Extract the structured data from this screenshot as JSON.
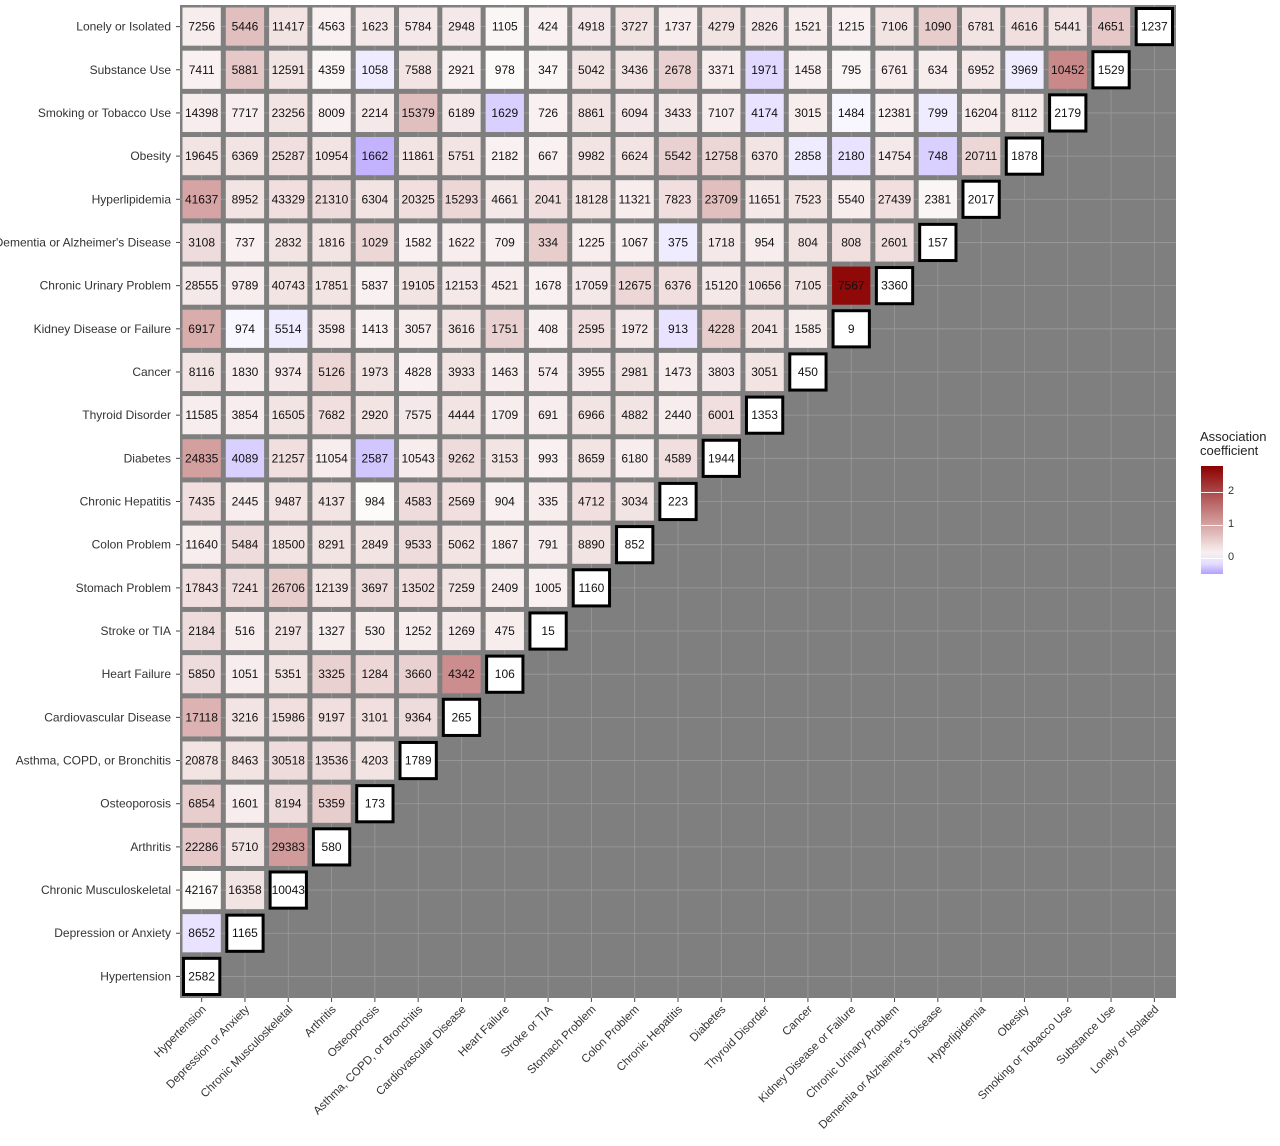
{
  "chart_data": {
    "type": "heatmap",
    "title": "",
    "xlabel": "",
    "ylabel": "",
    "conditions": [
      "Hypertension",
      "Depression or Anxiety",
      "Chronic Musculoskeletal",
      "Arthritis",
      "Osteoporosis",
      "Asthma, COPD, or Bronchitis",
      "Cardiovascular Disease",
      "Heart Failure",
      "Stroke or TIA",
      "Stomach Problem",
      "Colon Problem",
      "Chronic Hepatitis",
      "Diabetes",
      "Thyroid Disorder",
      "Cancer",
      "Kidney Disease or Failure",
      "Chronic Urinary Problem",
      "Dementia or Alzheimer's Disease",
      "Hyperlipidemia",
      "Obesity",
      "Smoking or Tobacco Use",
      "Substance Use",
      "Lonely or Isolated"
    ],
    "counts": [
      [
        2582,
        8652,
        42167,
        22286,
        6854,
        20878,
        17118,
        5850,
        2184,
        17843,
        11640,
        7435,
        24835,
        11585,
        8116,
        6917,
        28555,
        3108,
        41637,
        19645,
        14398,
        7411,
        7256
      ],
      [
        1165,
        16358,
        5710,
        1601,
        8463,
        3216,
        1051,
        516,
        7241,
        5484,
        2445,
        4089,
        3854,
        1830,
        974,
        9789,
        737,
        8952,
        6369,
        7717,
        5881,
        5446
      ],
      [
        10043,
        29383,
        8194,
        30518,
        15986,
        5351,
        2197,
        26706,
        18500,
        9487,
        21257,
        16505,
        9374,
        5514,
        40743,
        2832,
        43329,
        25287,
        23256,
        12591,
        11417
      ],
      [
        580,
        5359,
        13536,
        9197,
        3325,
        1327,
        12139,
        8291,
        4137,
        11054,
        7682,
        5126,
        3598,
        17851,
        1816,
        21310,
        10954,
        8009,
        4359,
        4563
      ],
      [
        173,
        4203,
        3101,
        1284,
        530,
        3697,
        2849,
        984,
        2587,
        2920,
        1973,
        1413,
        5837,
        1029,
        6304,
        1662,
        2214,
        1058,
        1623
      ],
      [
        1789,
        9364,
        3660,
        1252,
        13502,
        9533,
        4583,
        10543,
        7575,
        4828,
        3057,
        19105,
        1582,
        20325,
        11861,
        15379,
        7588,
        5784
      ],
      [
        265,
        4342,
        1269,
        7259,
        5062,
        2569,
        9262,
        4444,
        3933,
        3616,
        12153,
        1622,
        15293,
        5751,
        6189,
        2921,
        2948
      ],
      [
        106,
        475,
        2409,
        1867,
        904,
        3153,
        1709,
        1463,
        1751,
        4521,
        709,
        4661,
        2182,
        1629,
        978,
        1105
      ],
      [
        15,
        1005,
        791,
        335,
        993,
        691,
        574,
        408,
        1678,
        334,
        2041,
        667,
        726,
        347,
        424
      ],
      [
        1160,
        8890,
        4712,
        8659,
        6966,
        3955,
        2595,
        17059,
        1225,
        18128,
        9982,
        8861,
        5042,
        4918
      ],
      [
        852,
        3034,
        6180,
        4882,
        2981,
        1972,
        12675,
        1067,
        11321,
        6624,
        6094,
        3436,
        3727
      ],
      [
        223,
        4589,
        2440,
        1473,
        913,
        6376,
        375,
        7823,
        5542,
        3433,
        2678,
        1737
      ],
      [
        1944,
        6001,
        3803,
        4228,
        15120,
        1718,
        23709,
        12758,
        7107,
        3371,
        4279
      ],
      [
        1353,
        3051,
        2041,
        10656,
        954,
        11651,
        6370,
        4174,
        1971,
        2826
      ],
      [
        450,
        1585,
        7105,
        804,
        7523,
        2858,
        3015,
        1458,
        1521
      ],
      [
        9,
        7567,
        808,
        5540,
        2180,
        1484,
        795,
        1215
      ],
      [
        3360,
        2601,
        27439,
        14754,
        12381,
        6761,
        7106
      ],
      [
        157,
        2381,
        748,
        799,
        634,
        1090
      ],
      [
        2017,
        20711,
        16204,
        6952,
        6781
      ],
      [
        1878,
        8112,
        3969,
        4616
      ],
      [
        2179,
        10452,
        5441
      ],
      [
        1529,
        4651
      ],
      [
        1237
      ]
    ],
    "coefficients": [
      [
        null,
        -0.15,
        0.05,
        0.6,
        0.55,
        0.3,
        0.85,
        0.4,
        0.4,
        0.35,
        0.2,
        0.35,
        1.05,
        0.2,
        0.3,
        0.9,
        0.25,
        0.4,
        1.0,
        0.3,
        0.2,
        0.15,
        0.2
      ],
      [
        null,
        0.3,
        0.3,
        0.2,
        0.3,
        0.3,
        0.2,
        0.2,
        0.4,
        0.4,
        0.2,
        -0.25,
        0.2,
        0.2,
        -0.05,
        0.2,
        0.15,
        0.3,
        0.3,
        0.2,
        0.6,
        0.7
      ],
      [
        null,
        1.1,
        0.4,
        0.4,
        0.35,
        0.3,
        0.3,
        0.55,
        0.3,
        0.3,
        0.35,
        0.3,
        0.25,
        -0.1,
        0.3,
        0.3,
        0.35,
        0.35,
        0.3,
        0.3,
        0.3
      ],
      [
        null,
        0.55,
        0.4,
        0.35,
        0.5,
        0.2,
        0.3,
        0.3,
        0.3,
        0.2,
        0.35,
        0.45,
        0.25,
        0.3,
        0.3,
        0.4,
        0.3,
        0.15,
        0.1,
        0.15
      ],
      [
        null,
        0.3,
        0.35,
        0.45,
        0.2,
        0.4,
        0.3,
        0.05,
        -0.3,
        0.3,
        0.3,
        0.15,
        0.15,
        0.45,
        0.3,
        -0.4,
        0.25,
        -0.1,
        0.25
      ],
      [
        null,
        0.4,
        0.5,
        0.2,
        0.35,
        0.4,
        0.4,
        0.2,
        0.25,
        0.15,
        0.2,
        0.3,
        0.15,
        0.35,
        0.3,
        0.7,
        0.3,
        0.25
      ],
      [
        null,
        1.25,
        0.25,
        0.3,
        0.3,
        0.35,
        0.4,
        0.3,
        0.3,
        0.3,
        0.25,
        0.2,
        0.45,
        0.3,
        0.25,
        0.15,
        0.25
      ],
      [
        null,
        0.2,
        0.2,
        0.2,
        0.15,
        0.3,
        0.2,
        0.2,
        0.5,
        0.2,
        0.15,
        0.25,
        0.15,
        -0.25,
        0.05,
        0.1
      ],
      [
        null,
        0.15,
        0.2,
        0.2,
        0.15,
        0.2,
        0.2,
        0.15,
        0.15,
        0.55,
        0.35,
        0.15,
        0.15,
        0.1,
        0.15
      ],
      [
        null,
        0.3,
        0.35,
        0.3,
        0.3,
        0.25,
        0.35,
        0.25,
        0.2,
        0.3,
        0.3,
        0.3,
        0.3,
        0.25
      ],
      [
        null,
        0.3,
        0.2,
        0.3,
        0.3,
        0.25,
        0.45,
        0.15,
        0.2,
        0.3,
        0.25,
        0.3,
        0.3
      ],
      [
        null,
        0.35,
        0.2,
        0.2,
        -0.15,
        0.35,
        -0.1,
        0.35,
        0.5,
        0.25,
        0.5,
        0.2
      ],
      [
        null,
        0.35,
        0.25,
        0.55,
        0.25,
        0.25,
        0.7,
        0.45,
        0.2,
        0.2,
        0.3
      ],
      [
        null,
        0.3,
        0.3,
        0.3,
        0.2,
        0.25,
        0.3,
        -0.15,
        -0.2,
        0.25
      ],
      [
        null,
        0.2,
        0.3,
        0.3,
        0.3,
        -0.1,
        0.2,
        0.15,
        0.2
      ],
      [
        null,
        2.7,
        0.35,
        0.2,
        -0.15,
        -0.05,
        0.1,
        0.15
      ],
      [
        null,
        0.35,
        0.35,
        0.25,
        0.15,
        0.2,
        0.3
      ],
      [
        null,
        0.1,
        -0.25,
        -0.1,
        0.2,
        0.55
      ],
      [
        null,
        0.45,
        0.2,
        0.25,
        0.3
      ],
      [
        null,
        0.2,
        -0.1,
        0.35
      ],
      [
        null,
        1.3,
        0.3
      ],
      [
        null,
        0.6
      ],
      [
        null
      ]
    ],
    "legend": {
      "title_line1": "Association",
      "title_line2": "coefficient",
      "ticks": [
        "2",
        "1",
        "0"
      ],
      "placement": "right",
      "range": [
        -0.5,
        2.8
      ]
    },
    "colors": {
      "panel_background": "#7f7f7f",
      "grid": "#9a9a9a",
      "low": "#b4a0ff",
      "mid": "#ffffff",
      "high": "#8b0000",
      "diagonal_border": "#000000"
    }
  }
}
